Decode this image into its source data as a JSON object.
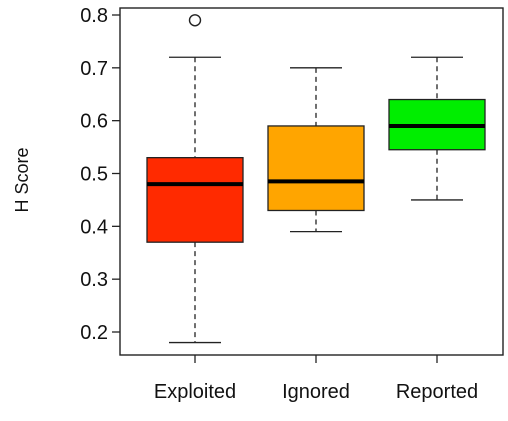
{
  "chart_data": {
    "type": "boxplot",
    "ylabel": "H Score",
    "xlabel": "",
    "ylim": [
      0.16,
      0.82
    ],
    "yticks": [
      "0.2",
      "0.3",
      "0.4",
      "0.5",
      "0.6",
      "0.7",
      "0.8"
    ],
    "grid": false,
    "categories": [
      "Exploited",
      "Ignored",
      "Reported"
    ],
    "boxes": [
      {
        "category": "Exploited",
        "color": "#FF2A00",
        "whisker_low": 0.18,
        "q1": 0.37,
        "median": 0.48,
        "q3": 0.53,
        "whisker_high": 0.72,
        "outliers": [
          0.79
        ]
      },
      {
        "category": "Ignored",
        "color": "#FFA500",
        "whisker_low": 0.39,
        "q1": 0.43,
        "median": 0.485,
        "q3": 0.59,
        "whisker_high": 0.7,
        "outliers": []
      },
      {
        "category": "Reported",
        "color": "#00EE00",
        "whisker_low": 0.45,
        "q1": 0.545,
        "median": 0.59,
        "q3": 0.64,
        "whisker_high": 0.72,
        "outliers": []
      }
    ]
  }
}
